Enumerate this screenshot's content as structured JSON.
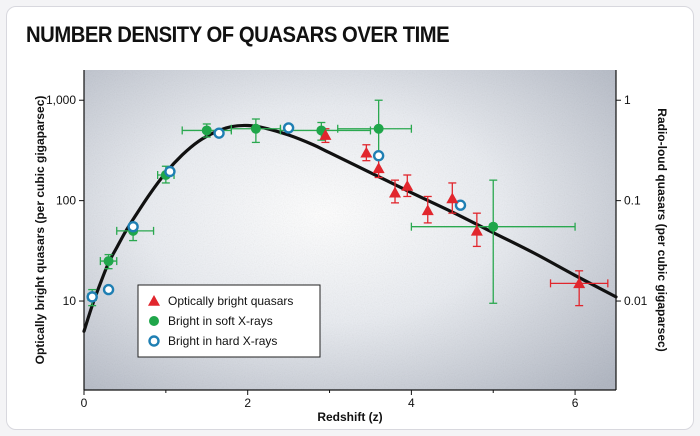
{
  "chart_data": {
    "type": "scatter",
    "title": "NUMBER DENSITY OF QUASARS OVER TIME",
    "xlabel": "Redshift (z)",
    "ylabel_left": "Optically bright quasars (per cubic gigaparsec)",
    "ylabel_right": "Radio-loud quasars (per cubic gigaparsec)",
    "xlim": [
      0,
      6.5
    ],
    "ylim_left": [
      1.3,
      2000
    ],
    "ylim_right": [
      0.0013,
      2
    ],
    "y_scale": "log",
    "x_ticks": [
      "0",
      "2",
      "4",
      "6"
    ],
    "x_tick_values": [
      0,
      2,
      4,
      6
    ],
    "y_ticks_left": [
      "1,000",
      "100",
      "10"
    ],
    "y_tick_values_left": [
      1000,
      100,
      10
    ],
    "y_ticks_right": [
      "1",
      "0.1",
      "0.01"
    ],
    "y_tick_values_right": [
      1,
      0.1,
      0.01
    ],
    "legend_position": "bottom-left",
    "colors": {
      "optical": "#e1262d",
      "soft": "#1fa64a",
      "hard": "#1f7fb3",
      "curve": "#111111",
      "soft_errorbar": "#2aa84f",
      "optical_errorbar": "#e1262d"
    },
    "curve": {
      "name": "",
      "x": [
        0,
        0.1,
        0.2,
        0.3,
        0.4,
        0.5,
        0.6,
        0.8,
        1.0,
        1.2,
        1.4,
        1.6,
        1.8,
        2.0,
        2.2,
        2.5,
        2.8,
        3.0,
        3.5,
        4.0,
        4.5,
        5.0,
        5.5,
        6.0,
        6.5
      ],
      "y": [
        5,
        9,
        15,
        24,
        34,
        48,
        65,
        115,
        190,
        285,
        390,
        480,
        545,
        560,
        530,
        450,
        360,
        300,
        190,
        120,
        77,
        48,
        30,
        18,
        11
      ]
    },
    "series": [
      {
        "name": "Optically bright quasars",
        "marker": "triangle",
        "points": [
          {
            "x": 2.95,
            "y": 450,
            "yerr": [
              380,
              520
            ]
          },
          {
            "x": 3.45,
            "y": 300,
            "yerr": [
              250,
              360
            ]
          },
          {
            "x": 3.6,
            "y": 210,
            "yerr": [
              170,
              260
            ]
          },
          {
            "x": 3.8,
            "y": 120,
            "yerr": [
              95,
              160
            ]
          },
          {
            "x": 3.95,
            "y": 140,
            "yerr": [
              110,
              180
            ]
          },
          {
            "x": 4.2,
            "y": 80,
            "yerr": [
              60,
              110
            ]
          },
          {
            "x": 4.5,
            "y": 105,
            "yerr": [
              75,
              150
            ]
          },
          {
            "x": 4.8,
            "y": 50,
            "yerr": [
              35,
              75
            ]
          },
          {
            "x": 6.05,
            "y": 15,
            "yerr": [
              9,
              20
            ],
            "xerr": [
              5.7,
              6.4
            ]
          }
        ]
      },
      {
        "name": "Bright in soft X-rays",
        "marker": "filled-circle",
        "points": [
          {
            "x": 0.1,
            "y": 11,
            "yerr": [
              9,
              13
            ],
            "xerr": [
              0.05,
              0.15
            ]
          },
          {
            "x": 0.3,
            "y": 25,
            "yerr": [
              21,
              29
            ],
            "xerr": [
              0.2,
              0.4
            ]
          },
          {
            "x": 0.6,
            "y": 50,
            "yerr": [
              40,
              60
            ],
            "xerr": [
              0.4,
              0.85
            ]
          },
          {
            "x": 1.0,
            "y": 180,
            "yerr": [
              150,
              220
            ],
            "xerr": [
              0.9,
              1.1
            ]
          },
          {
            "x": 1.5,
            "y": 500,
            "yerr": [
              430,
              580
            ],
            "xerr": [
              1.2,
              1.8
            ]
          },
          {
            "x": 2.1,
            "y": 520,
            "yerr": [
              380,
              650
            ],
            "xerr": [
              1.8,
              2.4
            ]
          },
          {
            "x": 2.9,
            "y": 500,
            "yerr": [
              400,
              600
            ],
            "xerr": [
              2.4,
              3.5
            ]
          },
          {
            "x": 3.6,
            "y": 520,
            "yerr": [
              260,
              1000
            ],
            "xerr": [
              3.1,
              4.0
            ]
          },
          {
            "x": 5.0,
            "y": 55,
            "yerr": [
              9.5,
              160
            ],
            "xerr": [
              4.0,
              6.0
            ]
          }
        ]
      },
      {
        "name": "Bright in hard X-rays",
        "marker": "open-circle",
        "points": [
          {
            "x": 0.1,
            "y": 11
          },
          {
            "x": 0.3,
            "y": 13
          },
          {
            "x": 0.6,
            "y": 55
          },
          {
            "x": 1.05,
            "y": 195
          },
          {
            "x": 1.65,
            "y": 470
          },
          {
            "x": 2.5,
            "y": 530
          },
          {
            "x": 3.6,
            "y": 280
          },
          {
            "x": 4.6,
            "y": 90
          }
        ]
      }
    ]
  }
}
